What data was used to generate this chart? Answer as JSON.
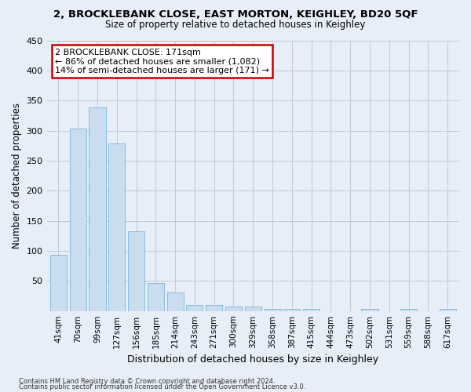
{
  "title": "2, BROCKLEBANK CLOSE, EAST MORTON, KEIGHLEY, BD20 5QF",
  "subtitle": "Size of property relative to detached houses in Keighley",
  "xlabel": "Distribution of detached houses by size in Keighley",
  "ylabel": "Number of detached properties",
  "categories": [
    "41sqm",
    "70sqm",
    "99sqm",
    "127sqm",
    "156sqm",
    "185sqm",
    "214sqm",
    "243sqm",
    "271sqm",
    "300sqm",
    "329sqm",
    "358sqm",
    "387sqm",
    "415sqm",
    "444sqm",
    "473sqm",
    "502sqm",
    "531sqm",
    "559sqm",
    "588sqm",
    "617sqm"
  ],
  "values": [
    93,
    303,
    338,
    278,
    133,
    47,
    31,
    10,
    10,
    7,
    8,
    3,
    3,
    4,
    0,
    0,
    3,
    0,
    3,
    0,
    3
  ],
  "bar_color": "#c9ddef",
  "bar_edge_color": "#7ab5d9",
  "annotation_text": "2 BROCKLEBANK CLOSE: 171sqm\n← 86% of detached houses are smaller (1,082)\n14% of semi-detached houses are larger (171) →",
  "annotation_box_color": "#ffffff",
  "annotation_box_edge": "#cc0000",
  "ylim": [
    0,
    450
  ],
  "yticks": [
    0,
    50,
    100,
    150,
    200,
    250,
    300,
    350,
    400,
    450
  ],
  "footer_line1": "Contains HM Land Registry data © Crown copyright and database right 2024.",
  "footer_line2": "Contains public sector information licensed under the Open Government Licence v3.0.",
  "bg_color": "#e8eef7",
  "plot_bg_color": "#e8eef7",
  "grid_color": "#c0c8d8"
}
